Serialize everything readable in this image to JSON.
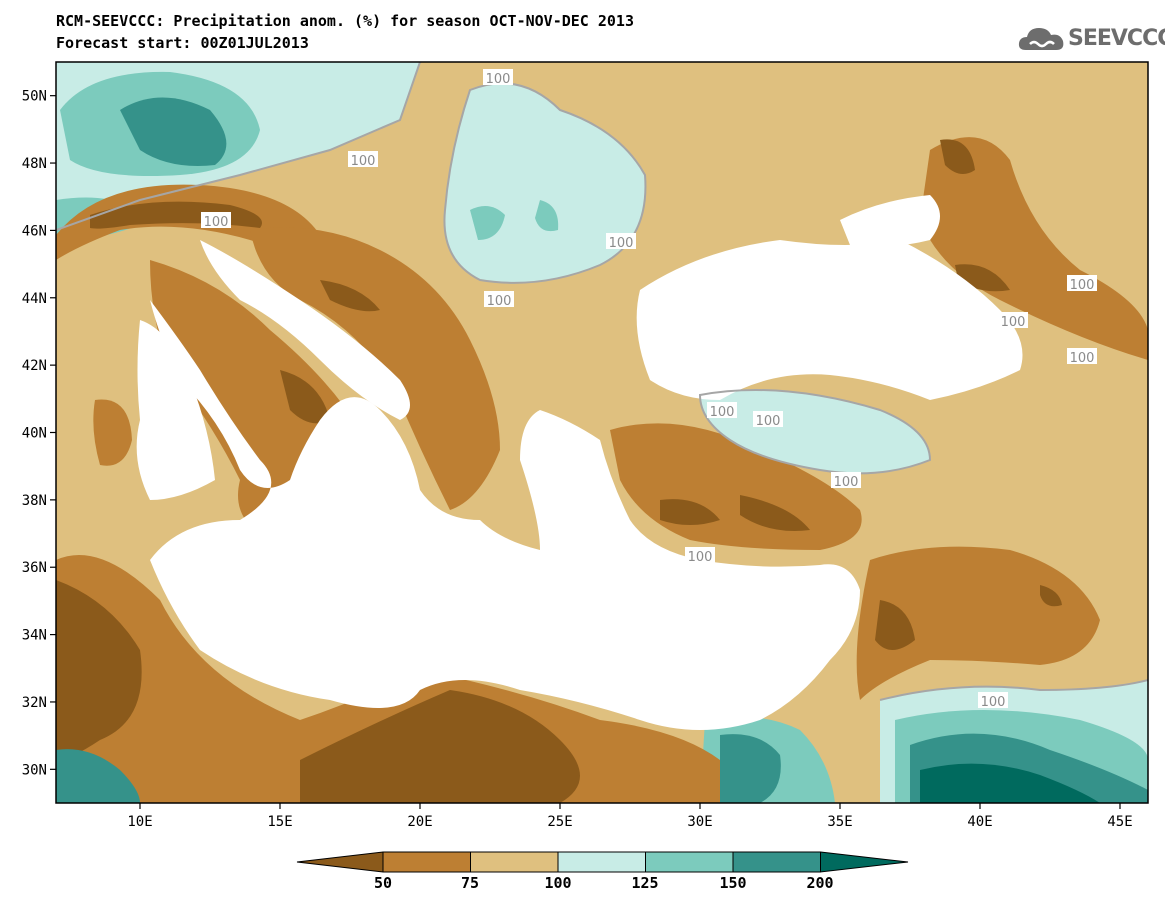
{
  "title": "RCM-SEEVCCC: Precipitation anom. (%) for season OCT-NOV-DEC 2013",
  "subtitle": "Forecast start: 00Z01JUL2013",
  "logo": {
    "text": "SEEVCCC",
    "icon": "cloud-icon"
  },
  "axes": {
    "lat_labels": [
      "50N",
      "48N",
      "46N",
      "44N",
      "42N",
      "40N",
      "38N",
      "36N",
      "34N",
      "32N",
      "30N"
    ],
    "lon_labels": [
      "10E",
      "15E",
      "20E",
      "25E",
      "30E",
      "35E",
      "40E",
      "45E"
    ],
    "lon_range": [
      7,
      46
    ],
    "lat_range": [
      29,
      51
    ]
  },
  "contour_labels": [
    "100",
    "100",
    "100",
    "100",
    "100",
    "100",
    "100",
    "100",
    "100",
    "100",
    "100",
    "100",
    "100"
  ],
  "colorbar": {
    "labels": [
      "50",
      "75",
      "100",
      "125",
      "150",
      "200"
    ],
    "colors": [
      "#8b5a1b",
      "#bd7f33",
      "#dfc07f",
      "#c8ece6",
      "#7ccbbd",
      "#35928a",
      "#006a5e"
    ]
  },
  "colors": {
    "sea": "#ffffff",
    "dry_strong": "#8b5a1b",
    "dry": "#bd7f33",
    "dry_light": "#dfc07f",
    "wet_light": "#c8ece6",
    "wet": "#7ccbbd",
    "wet_strong": "#35928a"
  }
}
